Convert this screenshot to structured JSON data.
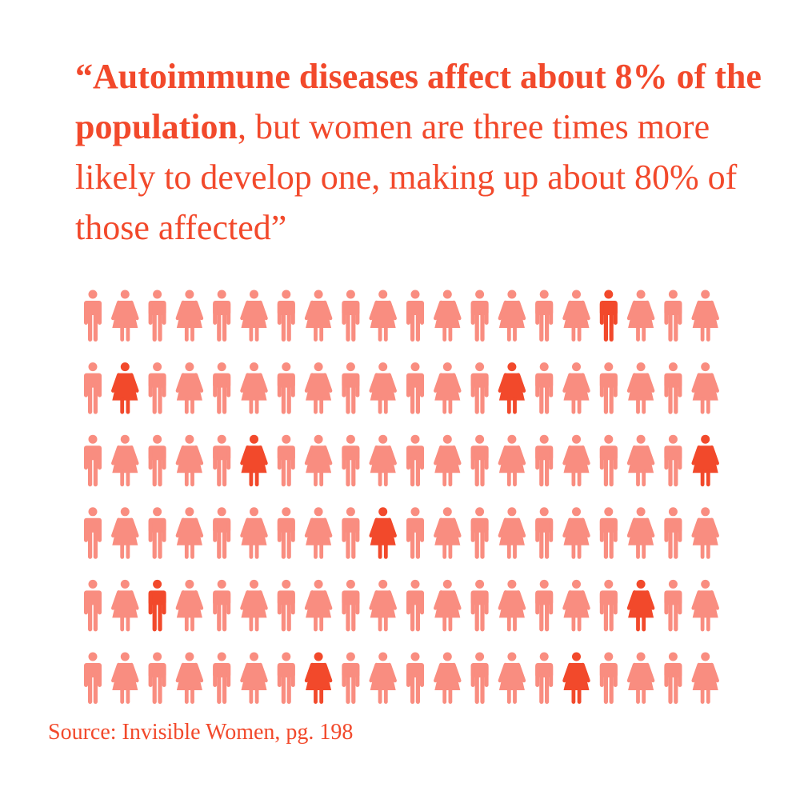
{
  "quote": {
    "bold_part": "“Autoimmune diseases affect about 8% of the population",
    "normal_part": ", but women are three times more likely to develop one, making up about 80% of those affected”"
  },
  "source": "Source: Invisible Women, pg. 198",
  "colors": {
    "text": "#f2492b",
    "highlight": "#f2492b",
    "base": "#f98d80",
    "background": "#ffffff"
  },
  "chart_data": {
    "type": "pictogram",
    "rows": 6,
    "columns": 20,
    "total": 120,
    "highlighted_count": 10,
    "highlighted_female": 8,
    "highlighted_male": 2,
    "pattern": "alternating, starting with male in the first column of each row",
    "highlighted_cells": [
      {
        "row": 1,
        "col": 17,
        "figure": "male"
      },
      {
        "row": 2,
        "col": 2,
        "figure": "female"
      },
      {
        "row": 2,
        "col": 14,
        "figure": "female"
      },
      {
        "row": 3,
        "col": 6,
        "figure": "female"
      },
      {
        "row": 3,
        "col": 20,
        "figure": "female"
      },
      {
        "row": 4,
        "col": 10,
        "figure": "female"
      },
      {
        "row": 5,
        "col": 3,
        "figure": "male"
      },
      {
        "row": 5,
        "col": 18,
        "figure": "female"
      },
      {
        "row": 6,
        "col": 8,
        "figure": "female"
      },
      {
        "row": 6,
        "col": 16,
        "figure": "female"
      }
    ]
  }
}
